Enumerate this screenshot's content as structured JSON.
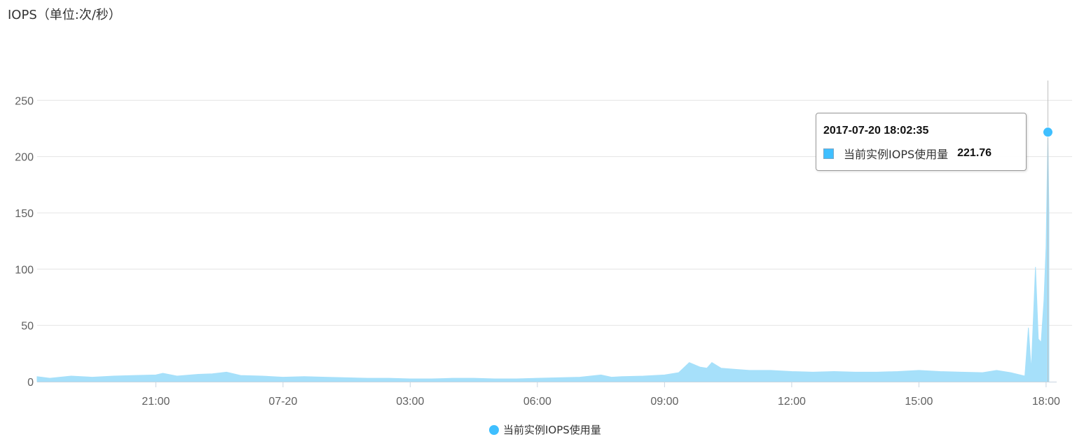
{
  "title": "IOPS（单位:次/秒）",
  "colors": {
    "series": "#3fbfff",
    "area": "#a6e0fa",
    "grid": "#e4e4e4",
    "axis": "#c8d5e0"
  },
  "chart_data": {
    "type": "area",
    "title": "IOPS（单位:次/秒）",
    "xlabel": "",
    "ylabel": "",
    "ylim": [
      0,
      270
    ],
    "y_ticks": [
      0,
      50,
      100,
      150,
      200,
      250
    ],
    "x_ticks": [
      "21:00",
      "07-20",
      "03:00",
      "06:00",
      "09:00",
      "12:00",
      "15:00",
      "18:00"
    ],
    "x_tick_times": [
      "2017-07-19 21:00",
      "2017-07-20 00:00",
      "2017-07-20 03:00",
      "2017-07-20 06:00",
      "2017-07-20 09:00",
      "2017-07-20 12:00",
      "2017-07-20 15:00",
      "2017-07-20 18:00"
    ],
    "xlim": [
      "2017-07-19 18:12",
      "2017-07-20 18:15"
    ],
    "grid": true,
    "legend_position": "bottom-center",
    "series": [
      {
        "name": "当前实例IOPS使用量",
        "points": [
          [
            "2017-07-19 18:12",
            4.5
          ],
          [
            "2017-07-19 18:30",
            3.0
          ],
          [
            "2017-07-19 19:00",
            5.0
          ],
          [
            "2017-07-19 19:30",
            4.0
          ],
          [
            "2017-07-19 20:00",
            5.0
          ],
          [
            "2017-07-19 20:30",
            5.5
          ],
          [
            "2017-07-19 21:00",
            6.0
          ],
          [
            "2017-07-19 21:10",
            7.5
          ],
          [
            "2017-07-19 21:30",
            5.0
          ],
          [
            "2017-07-19 22:00",
            6.5
          ],
          [
            "2017-07-19 22:20",
            7.0
          ],
          [
            "2017-07-19 22:40",
            8.5
          ],
          [
            "2017-07-19 23:00",
            5.5
          ],
          [
            "2017-07-19 23:30",
            5.0
          ],
          [
            "2017-07-20 00:00",
            4.0
          ],
          [
            "2017-07-20 00:30",
            4.5
          ],
          [
            "2017-07-20 01:00",
            4.0
          ],
          [
            "2017-07-20 01:30",
            3.5
          ],
          [
            "2017-07-20 02:00",
            3.0
          ],
          [
            "2017-07-20 02:30",
            3.0
          ],
          [
            "2017-07-20 03:00",
            2.5
          ],
          [
            "2017-07-20 03:30",
            2.5
          ],
          [
            "2017-07-20 04:00",
            3.0
          ],
          [
            "2017-07-20 04:30",
            3.0
          ],
          [
            "2017-07-20 05:00",
            2.5
          ],
          [
            "2017-07-20 05:30",
            2.5
          ],
          [
            "2017-07-20 06:00",
            3.0
          ],
          [
            "2017-07-20 06:30",
            3.5
          ],
          [
            "2017-07-20 07:00",
            4.0
          ],
          [
            "2017-07-20 07:30",
            6.0
          ],
          [
            "2017-07-20 07:45",
            4.0
          ],
          [
            "2017-07-20 08:00",
            4.5
          ],
          [
            "2017-07-20 08:30",
            5.0
          ],
          [
            "2017-07-20 09:00",
            6.0
          ],
          [
            "2017-07-20 09:20",
            8.0
          ],
          [
            "2017-07-20 09:35",
            17.0
          ],
          [
            "2017-07-20 09:50",
            13.0
          ],
          [
            "2017-07-20 10:00",
            12.0
          ],
          [
            "2017-07-20 10:07",
            17.0
          ],
          [
            "2017-07-20 10:20",
            12.0
          ],
          [
            "2017-07-20 10:40",
            11.0
          ],
          [
            "2017-07-20 11:00",
            10.0
          ],
          [
            "2017-07-20 11:30",
            10.0
          ],
          [
            "2017-07-20 12:00",
            9.0
          ],
          [
            "2017-07-20 12:30",
            8.5
          ],
          [
            "2017-07-20 13:00",
            9.0
          ],
          [
            "2017-07-20 13:30",
            8.5
          ],
          [
            "2017-07-20 14:00",
            8.5
          ],
          [
            "2017-07-20 14:30",
            9.0
          ],
          [
            "2017-07-20 15:00",
            10.0
          ],
          [
            "2017-07-20 15:30",
            9.0
          ],
          [
            "2017-07-20 16:00",
            8.5
          ],
          [
            "2017-07-20 16:30",
            8.0
          ],
          [
            "2017-07-20 16:50",
            10.0
          ],
          [
            "2017-07-20 17:10",
            8.0
          ],
          [
            "2017-07-20 17:30",
            5.0
          ],
          [
            "2017-07-20 17:35",
            48.0
          ],
          [
            "2017-07-20 17:39",
            10.0
          ],
          [
            "2017-07-20 17:45",
            102.0
          ],
          [
            "2017-07-20 17:49",
            38.0
          ],
          [
            "2017-07-20 17:53",
            35.0
          ],
          [
            "2017-07-20 17:57",
            72.0
          ],
          [
            "2017-07-20 18:00",
            120.0
          ],
          [
            "2017-07-20 18:02:35",
            221.76
          ],
          [
            "2017-07-20 18:04",
            150.0
          ]
        ]
      }
    ],
    "tooltip": {
      "time": "2017-07-20 18:02:35",
      "series": "当前实例IOPS使用量",
      "value": "221.76"
    }
  }
}
